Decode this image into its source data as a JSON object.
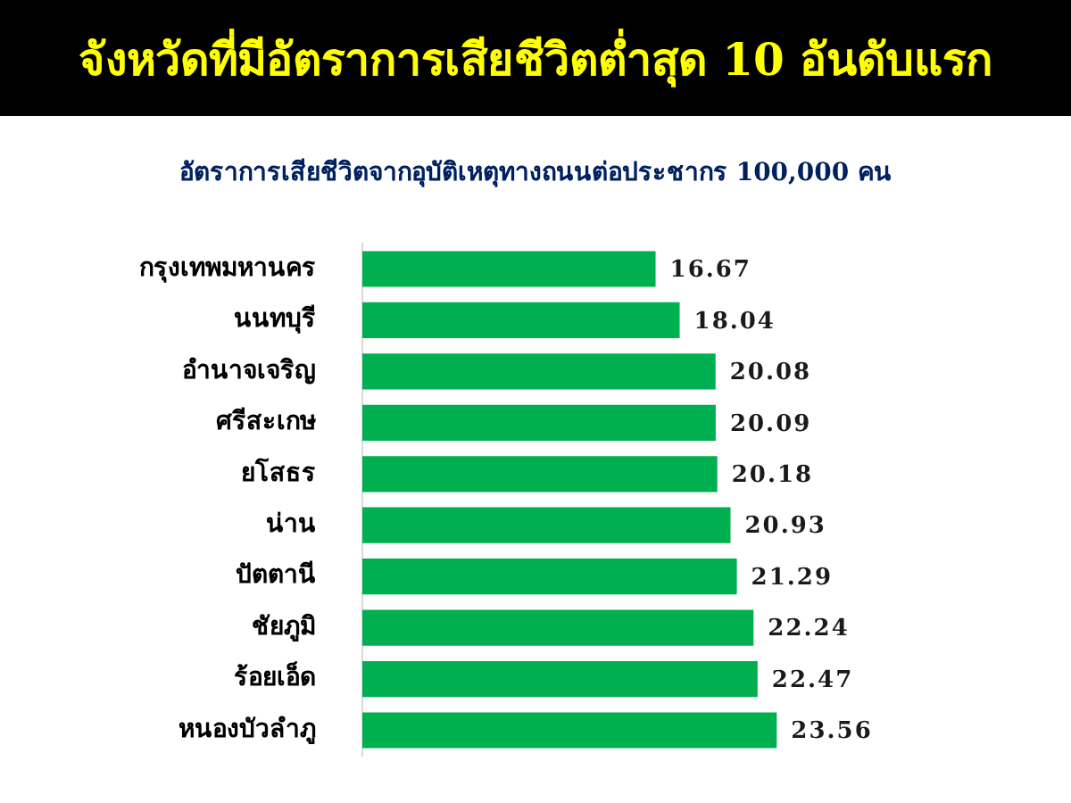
{
  "chart_data": {
    "type": "bar",
    "orientation": "horizontal",
    "title": "จังหวัดที่มีอัตราการเสียชีวิตต่ำสุด 10 อันดับแรก",
    "subtitle": "อัตราการเสียชีวิตจากอุบัติเหตุทางถนนต่อประชากร 100,000 คน",
    "categories": [
      "กรุงเทพมหานคร",
      "นนทบุรี",
      "อำนาจเจริญ",
      "ศรีสะเกษ",
      "ยโสธร",
      "น่าน",
      "ปัตตานี",
      "ชัยภูมิ",
      "ร้อยเอ็ด",
      "หนองบัวลำภู"
    ],
    "values": [
      16.67,
      18.04,
      20.08,
      20.09,
      20.18,
      20.93,
      21.29,
      22.24,
      22.47,
      23.56
    ],
    "color": "#00b050",
    "data_labels": true
  }
}
